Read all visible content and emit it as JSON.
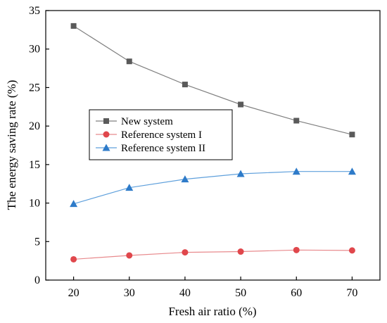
{
  "chart_data": {
    "type": "line",
    "title": "",
    "xlabel": "Fresh air ratio (%)",
    "ylabel": "The energy saving rate (%)",
    "x": [
      20,
      30,
      40,
      50,
      60,
      70
    ],
    "xticks": [
      "20",
      "30",
      "40",
      "50",
      "60",
      "70"
    ],
    "xlim": [
      15,
      75
    ],
    "ylim": [
      0,
      35
    ],
    "yticks": [
      "0",
      "5",
      "10",
      "15",
      "20",
      "25",
      "30",
      "35"
    ],
    "grid": false,
    "legend_position": "center-left",
    "series": [
      {
        "name": "New system",
        "values": [
          33.0,
          28.4,
          25.4,
          22.8,
          20.7,
          18.9
        ],
        "color": "#808080",
        "line_color": "#7f7f7f",
        "marker": "square",
        "marker_color": "#5a5a5a"
      },
      {
        "name": "Reference system I",
        "values": [
          2.7,
          3.2,
          3.6,
          3.7,
          3.9,
          3.85
        ],
        "color": "#e0474c",
        "line_color": "#e88a8d",
        "marker": "circle",
        "marker_color": "#e0474c"
      },
      {
        "name": "Reference system II",
        "values": [
          9.9,
          12.0,
          13.1,
          13.8,
          14.1,
          14.1
        ],
        "color": "#2e7bc9",
        "line_color": "#5fa0dc",
        "marker": "triangle",
        "marker_color": "#2e7bc9"
      }
    ]
  }
}
